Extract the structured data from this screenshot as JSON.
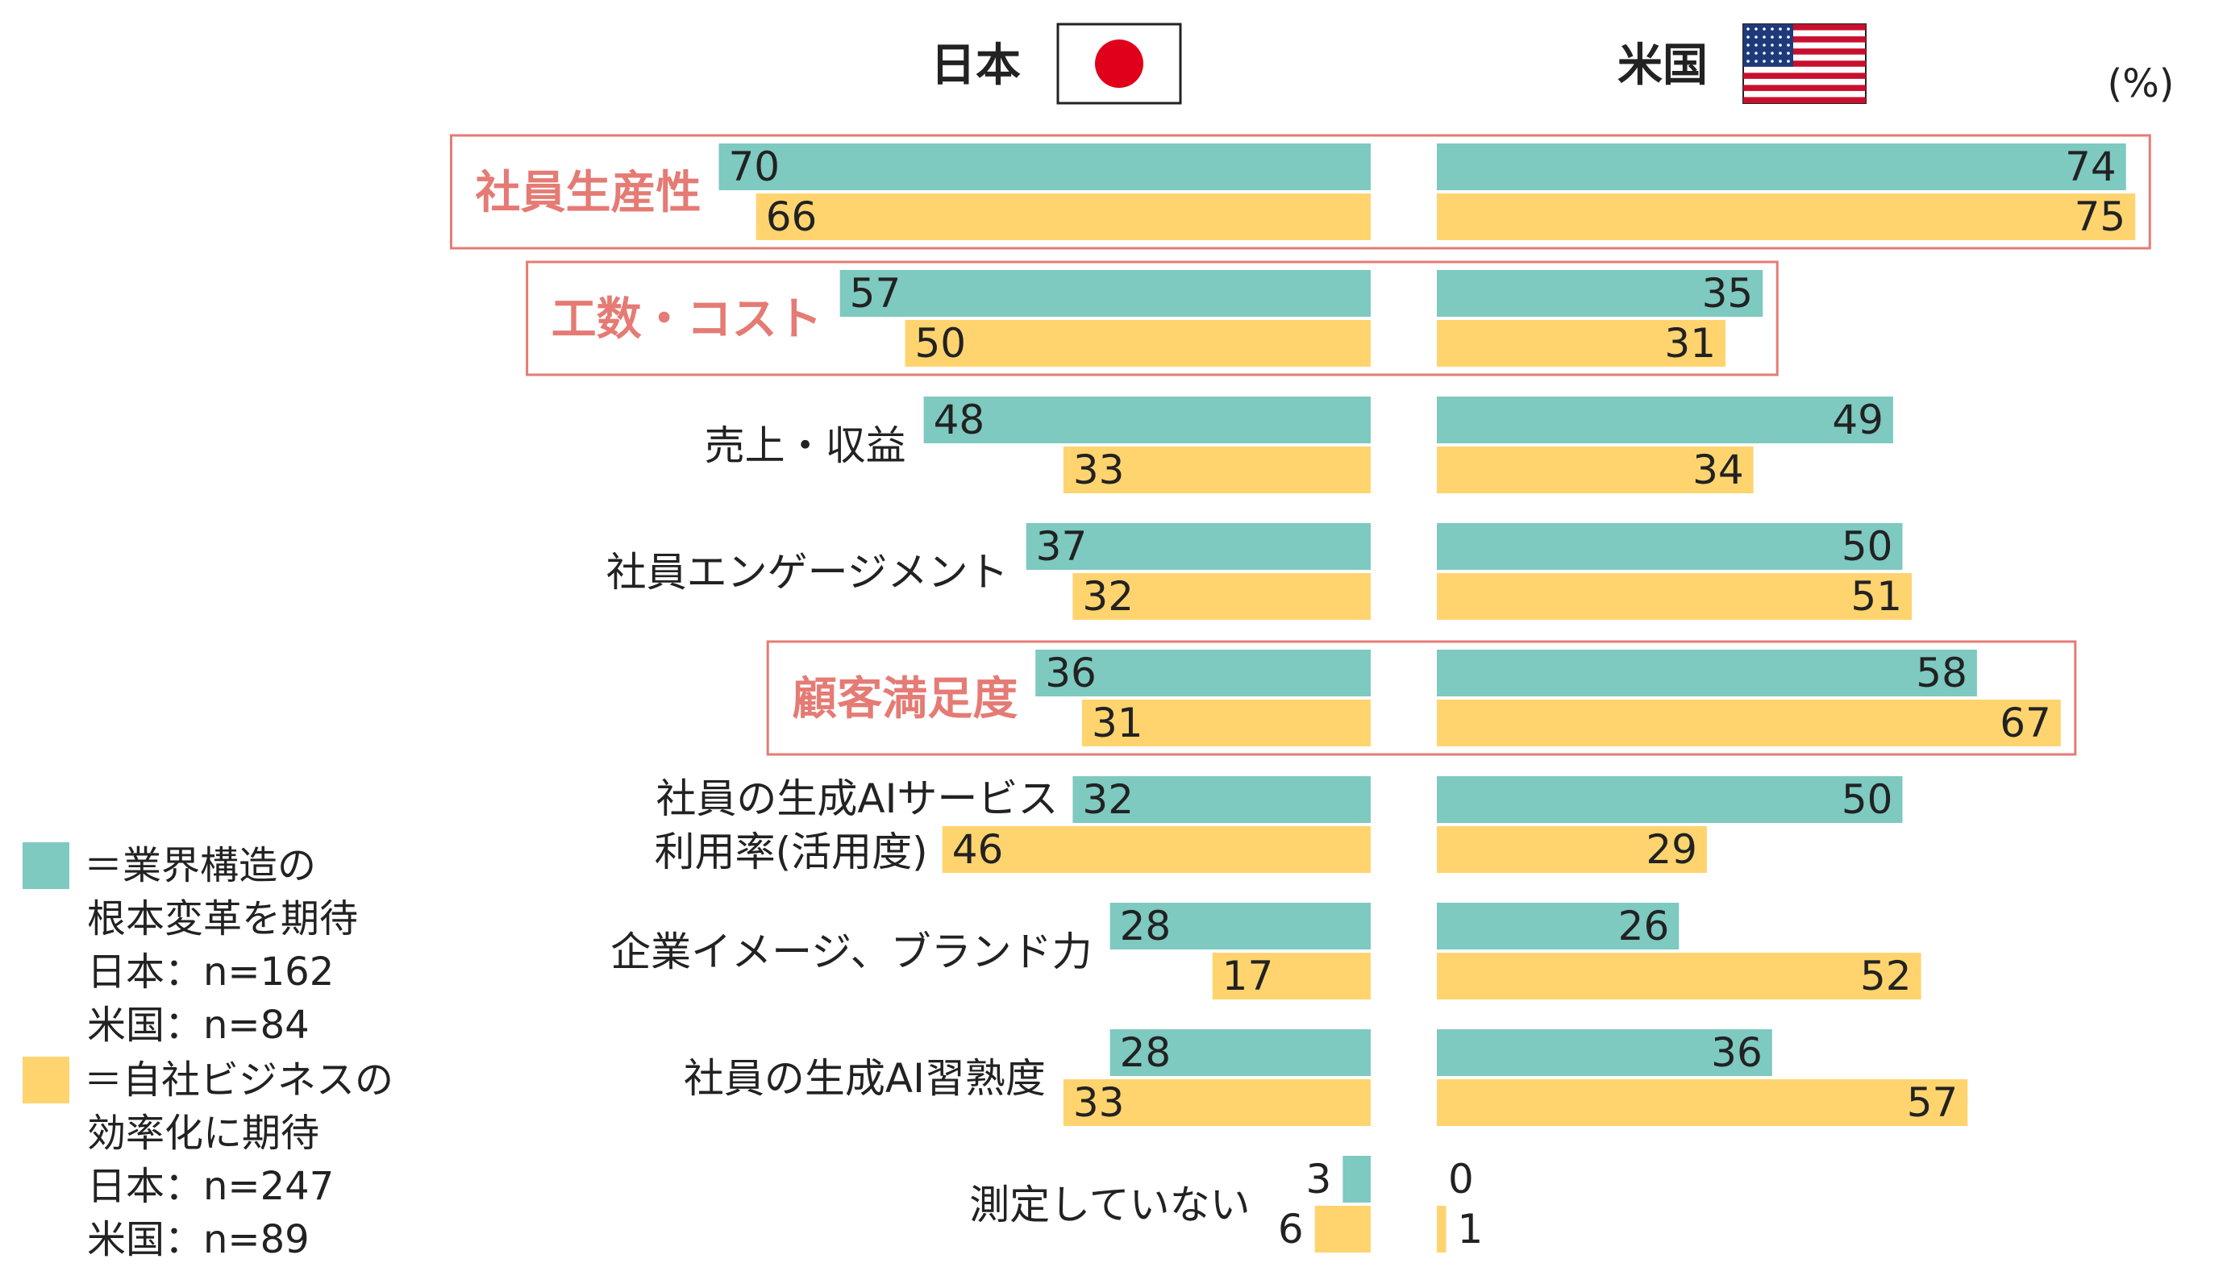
{
  "header": {
    "japan_label": "日本",
    "us_label": "米国",
    "unit_label": "(%)"
  },
  "legend": {
    "teal_lines": [
      "＝業界構造の",
      "根本変革を期待",
      "日本：n=162",
      "米国：n=84"
    ],
    "yellow_lines": [
      "＝自社ビジネスの",
      "効率化に期待",
      "日本：n=247",
      "米国：n=89"
    ]
  },
  "colors": {
    "teal": "#7ec9c0",
    "yellow": "#ffd46f",
    "highlight": "#e57b74",
    "text": "#222222"
  },
  "chart_data": {
    "type": "bar",
    "orientation": "horizontal-butterfly",
    "panels": [
      "日本",
      "米国"
    ],
    "categories": [
      {
        "lines": [
          "社員生産性"
        ],
        "highlight": true
      },
      {
        "lines": [
          "工数・コスト"
        ],
        "highlight": true
      },
      {
        "lines": [
          "売上・収益"
        ],
        "highlight": false
      },
      {
        "lines": [
          "社員エンゲージメント"
        ],
        "highlight": false
      },
      {
        "lines": [
          "顧客満足度"
        ],
        "highlight": true
      },
      {
        "lines": [
          "社員の生成AIサービス",
          "利用率(活用度)"
        ],
        "highlight": false
      },
      {
        "lines": [
          "企業イメージ、ブランド力"
        ],
        "highlight": false
      },
      {
        "lines": [
          "社員の生成AI習熟度"
        ],
        "highlight": false
      },
      {
        "lines": [
          "測定していない"
        ],
        "highlight": false
      }
    ],
    "series": [
      {
        "name": "業界構造の根本変革を期待",
        "color": "#7ec9c0",
        "japan": [
          70,
          57,
          48,
          37,
          36,
          32,
          28,
          28,
          3
        ],
        "us": [
          74,
          35,
          49,
          50,
          58,
          50,
          26,
          36,
          0
        ]
      },
      {
        "name": "自社ビジネスの効率化に期待",
        "color": "#ffd46f",
        "japan": [
          66,
          50,
          33,
          32,
          31,
          46,
          17,
          33,
          6
        ],
        "us": [
          75,
          31,
          34,
          51,
          67,
          29,
          52,
          57,
          1
        ]
      }
    ],
    "xlim": [
      0,
      80
    ],
    "unit": "%"
  }
}
